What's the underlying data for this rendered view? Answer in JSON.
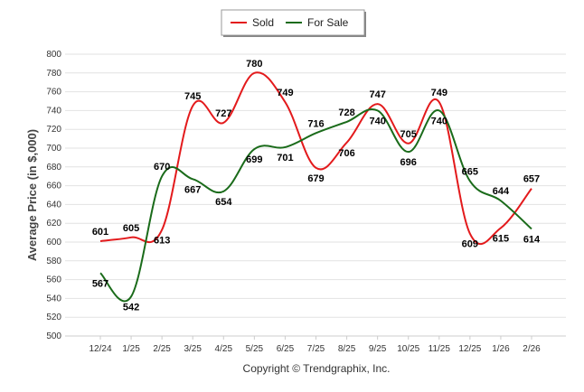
{
  "chart_data": {
    "type": "line",
    "title": "",
    "xlabel": "",
    "ylabel": "Average Price (in $,000)",
    "ylim": [
      500,
      800
    ],
    "ytick_step": 20,
    "grid": true,
    "legend_position": "top-center",
    "categories": [
      "12/24",
      "1/25",
      "2/25",
      "3/25",
      "4/25",
      "5/25",
      "6/25",
      "7/25",
      "8/25",
      "9/25",
      "10/25",
      "11/25",
      "12/25",
      "1/26",
      "2/26"
    ],
    "series": [
      {
        "name": "Sold",
        "color": "#e31a1c",
        "values": [
          601,
          605,
          613,
          745,
          727,
          780,
          749,
          679,
          706,
          747,
          705,
          749,
          609,
          615,
          657
        ]
      },
      {
        "name": "For Sale",
        "color": "#1a6b1a",
        "values": [
          567,
          542,
          670,
          667,
          654,
          699,
          701,
          716,
          728,
          740,
          696,
          740,
          665,
          644,
          614
        ]
      }
    ],
    "footer": "Copyright © Trendgraphix, Inc."
  }
}
